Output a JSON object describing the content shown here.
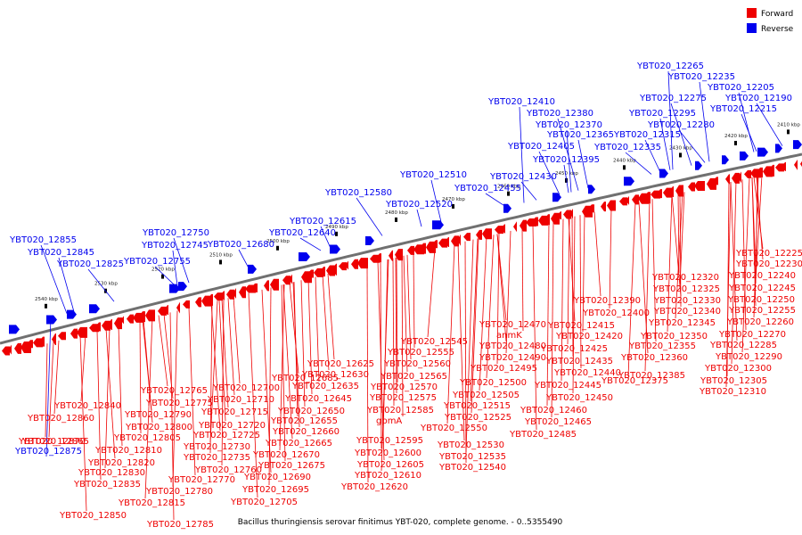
{
  "caption": "Bacillus thuringiensis serovar finitimus YBT-020, complete genome. - 0..5355490",
  "legend": [
    {
      "label": "Forward",
      "color": "#ee0000"
    },
    {
      "label": "Reverse",
      "color": "#0000ee"
    }
  ],
  "colors": {
    "forward": "#ee0000",
    "reverse": "#0000ee",
    "axis": "#707070"
  },
  "ticks": [
    "2410 kbp",
    "2420 kbp",
    "2430 kbp",
    "2440 kbp",
    "2450 kbp",
    "2460 kbp",
    "2470 kbp",
    "2480 kbp",
    "2490 kbp",
    "2500 kbp",
    "2510 kbp",
    "2520 kbp",
    "2530 kbp",
    "2540 kbp"
  ],
  "reverse_labels": [
    "YBT020_12265",
    "YBT020_12235",
    "YBT020_12205",
    "YBT020_12275",
    "YBT020_12190",
    "YBT020_12410",
    "YBT020_12295",
    "YBT020_12215",
    "YBT020_12380",
    "YBT020_12280",
    "YBT020_12370",
    "YBT020_12365",
    "YBT020_12315",
    "YBT020_12405",
    "YBT020_12335",
    "YBT020_12395",
    "YBT020_12510",
    "YBT020_12430",
    "YBT020_12455",
    "YBT020_12580",
    "YBT020_12520",
    "YBT020_12615",
    "YBT020_12750",
    "YBT020_12640",
    "YBT020_12855",
    "YBT020_12745",
    "YBT020_12680",
    "YBT020_12845",
    "YBT020_12755",
    "YBT020_12825",
    "YBT020_12875"
  ],
  "forward_labels": [
    "YBT020_12225",
    "YBT020_12230",
    "YBT020_12240",
    "YBT020_12320",
    "YBT020_12245",
    "YBT020_12325",
    "YBT020_12250",
    "YBT020_12330",
    "YBT020_12390",
    "YBT020_12255",
    "YBT020_12340",
    "YBT020_12400",
    "YBT020_12260",
    "YBT020_12345",
    "YBT020_12470",
    "YBT020_12415",
    "YBT020_12270",
    "anmK",
    "YBT020_12420",
    "YBT020_12350",
    "YBT020_12545",
    "YBT020_12480",
    "YBT020_12285",
    "YBT020_12355",
    "YBT020_12555",
    "YBT020_12425",
    "YBT020_12490",
    "YBT020_12290",
    "YBT020_12360",
    "YBT020_12625",
    "YBT020_12560",
    "YBT020_12435",
    "YBT020_12495",
    "YBT020_12300",
    "YBT020_12375",
    "YBT020_12685",
    "YBT020_12630",
    "YBT020_12565",
    "YBT020_12440",
    "YBT020_12305",
    "YBT020_12385",
    "YBT020_12500",
    "YBT020_12765",
    "YBT020_12700",
    "YBT020_12635",
    "YBT020_12570",
    "YBT020_12445",
    "YBT020_12310",
    "YBT020_12505",
    "YBT020_12775",
    "YBT020_12710",
    "YBT020_12645",
    "YBT020_12575",
    "YBT020_12450",
    "YBT020_12840",
    "YBT020_12515",
    "YBT020_12790",
    "YBT020_12715",
    "YBT020_12650",
    "YBT020_12585",
    "YBT020_12460",
    "YBT020_12860",
    "YBT020_12525",
    "YBT020_12800",
    "YBT020_12720",
    "YBT020_12655",
    "gpmA",
    "YBT020_12465",
    "YBT020_12865",
    "YBT020_12550",
    "YBT020_12725",
    "YBT020_12660",
    "YBT020_12485",
    "YBT020_12805",
    "YBT020_12870",
    "YBT020_12595",
    "YBT020_12730",
    "YBT020_12665",
    "YBT020_12530",
    "YBT020_12810",
    "YBT020_12600",
    "YBT020_12735",
    "YBT020_12670",
    "YBT020_12535",
    "YBT020_12820",
    "YBT020_12605",
    "YBT020_12675",
    "YBT020_12540",
    "YBT020_12760",
    "YBT020_12830",
    "YBT020_12610",
    "YBT020_12690",
    "YBT020_12770",
    "YBT020_12835",
    "YBT020_12620",
    "YBT020_12695",
    "YBT020_12780",
    "YBT020_12815",
    "YBT020_12705",
    "YBT020_12850",
    "YBT020_12785"
  ]
}
